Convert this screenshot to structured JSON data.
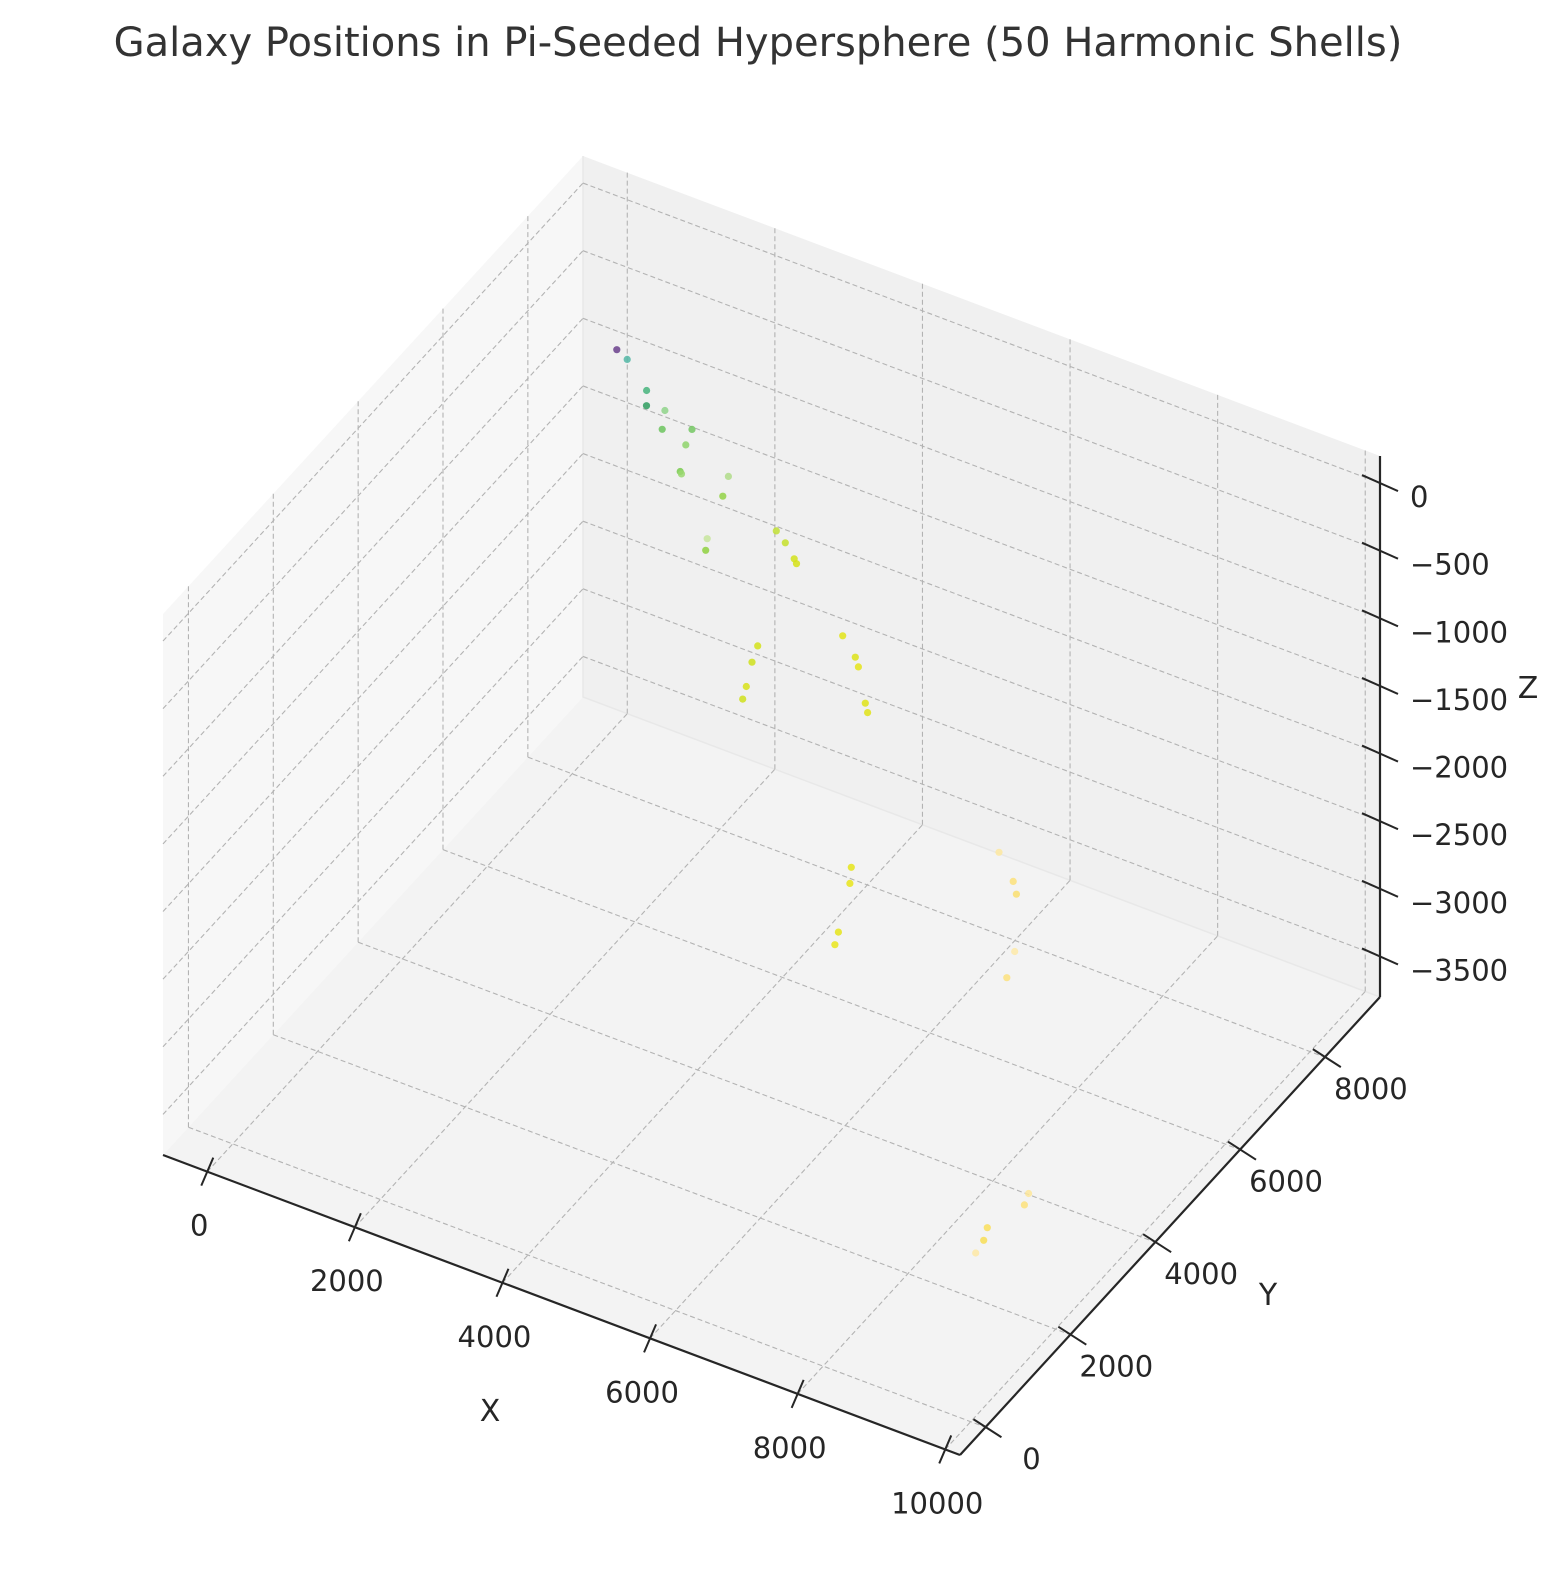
{
  "chart_data": {
    "type": "scatter",
    "projection": "3d",
    "title": "Galaxy Positions in Pi-Seeded Hypersphere (50 Harmonic Shells)",
    "xlabel": "X",
    "ylabel": "Y",
    "zlabel": "Z",
    "xlim": [
      -600,
      10200
    ],
    "ylim": [
      -600,
      9300
    ],
    "zlim": [
      -3800,
      200
    ],
    "xticks": [
      0,
      2000,
      4000,
      6000,
      8000,
      10000
    ],
    "yticks": [
      0,
      2000,
      4000,
      6000,
      8000
    ],
    "zticks": [
      0,
      -500,
      -1000,
      -1500,
      -2000,
      -2500,
      -3000,
      -3500
    ],
    "xtick_labels": [
      "0",
      "2000",
      "4000",
      "6000",
      "8000",
      "10000"
    ],
    "ytick_labels": [
      "0",
      "2000",
      "4000",
      "6000",
      "8000"
    ],
    "ztick_labels": [
      "0",
      "−500",
      "−1000",
      "−1500",
      "−2000",
      "−2500",
      "−3000",
      "−3500"
    ],
    "grid": true,
    "colormap": "viridis",
    "points": [
      {
        "x": 30,
        "y": 9000,
        "z": -1000,
        "color": "#6a3f8c"
      },
      {
        "x": 200,
        "y": 8950,
        "z": -1020,
        "color": "#54b7a6"
      },
      {
        "x": 520,
        "y": 8850,
        "z": -1150,
        "color": "#47b47d"
      },
      {
        "x": 560,
        "y": 8780,
        "z": -1230,
        "color": "#2f9e5f"
      },
      {
        "x": 740,
        "y": 8900,
        "z": -1270,
        "color": "#8fd48a"
      },
      {
        "x": 760,
        "y": 8800,
        "z": -1370,
        "color": "#6cc45e"
      },
      {
        "x": 1050,
        "y": 9000,
        "z": -1380,
        "color": "#74c763"
      },
      {
        "x": 1080,
        "y": 8800,
        "z": -1420,
        "color": "#8ed46b"
      },
      {
        "x": 1120,
        "y": 8600,
        "z": -1540,
        "color": "#79cb4f"
      },
      {
        "x": 1080,
        "y": 8700,
        "z": -1600,
        "color": "#9ad870"
      },
      {
        "x": 1600,
        "y": 8900,
        "z": -1580,
        "color": "#b0dc8a"
      },
      {
        "x": 1640,
        "y": 8700,
        "z": -1650,
        "color": "#93d247"
      },
      {
        "x": 1600,
        "y": 8400,
        "z": -1870,
        "color": "#c7e59c"
      },
      {
        "x": 1580,
        "y": 8400,
        "z": -1960,
        "color": "#8fd140"
      },
      {
        "x": 2250,
        "y": 8900,
        "z": -1850,
        "color": "#c1df35"
      },
      {
        "x": 2400,
        "y": 8850,
        "z": -1890,
        "color": "#c5e02a"
      },
      {
        "x": 2550,
        "y": 8800,
        "z": -1960,
        "color": "#d2e21b"
      },
      {
        "x": 2580,
        "y": 8800,
        "z": -1990,
        "color": "#d6e218"
      },
      {
        "x": 2400,
        "y": 8200,
        "z": -2430,
        "color": "#d4e21a"
      },
      {
        "x": 2380,
        "y": 8100,
        "z": -2520,
        "color": "#cfe11c"
      },
      {
        "x": 2360,
        "y": 8000,
        "z": -2670,
        "color": "#d8e219"
      },
      {
        "x": 2340,
        "y": 7950,
        "z": -2750,
        "color": "#d0e11c"
      },
      {
        "x": 3350,
        "y": 8550,
        "z": -2280,
        "color": "#e2e418"
      },
      {
        "x": 3550,
        "y": 8500,
        "z": -2380,
        "color": "#dde318"
      },
      {
        "x": 3620,
        "y": 8450,
        "z": -2420,
        "color": "#e5e419"
      },
      {
        "x": 3800,
        "y": 8300,
        "z": -2600,
        "color": "#dfe318"
      },
      {
        "x": 3860,
        "y": 8250,
        "z": -2640,
        "color": "#e1e318"
      },
      {
        "x": 4300,
        "y": 7100,
        "z": -3300,
        "color": "#e5e419"
      },
      {
        "x": 4310,
        "y": 7050,
        "z": -3400,
        "color": "#e8e419"
      },
      {
        "x": 4270,
        "y": 6850,
        "z": -3700,
        "color": "#e5e419"
      },
      {
        "x": 4250,
        "y": 6800,
        "z": -3780,
        "color": "#e9e51a"
      },
      {
        "x": 5900,
        "y": 7800,
        "z": -3100,
        "color": "#fde7a0"
      },
      {
        "x": 6150,
        "y": 7700,
        "z": -3230,
        "color": "#fbe07a"
      },
      {
        "x": 6250,
        "y": 7600,
        "z": -3270,
        "color": "#f9de6e"
      },
      {
        "x": 6400,
        "y": 7300,
        "z": -3560,
        "color": "#fde9a8"
      },
      {
        "x": 6350,
        "y": 7200,
        "z": -3730,
        "color": "#fbe17d"
      },
      {
        "x": 8600,
        "y": 3800,
        "z": -3700,
        "color": "#fde69a"
      },
      {
        "x": 8600,
        "y": 3700,
        "z": -3750,
        "color": "#fbe07a"
      },
      {
        "x": 8500,
        "y": 3000,
        "z": -3700,
        "color": "#f9de5a"
      },
      {
        "x": 8480,
        "y": 2950,
        "z": -3780,
        "color": "#f7dd55"
      },
      {
        "x": 8430,
        "y": 2850,
        "z": -3850,
        "color": "#fde8a5"
      }
    ]
  }
}
